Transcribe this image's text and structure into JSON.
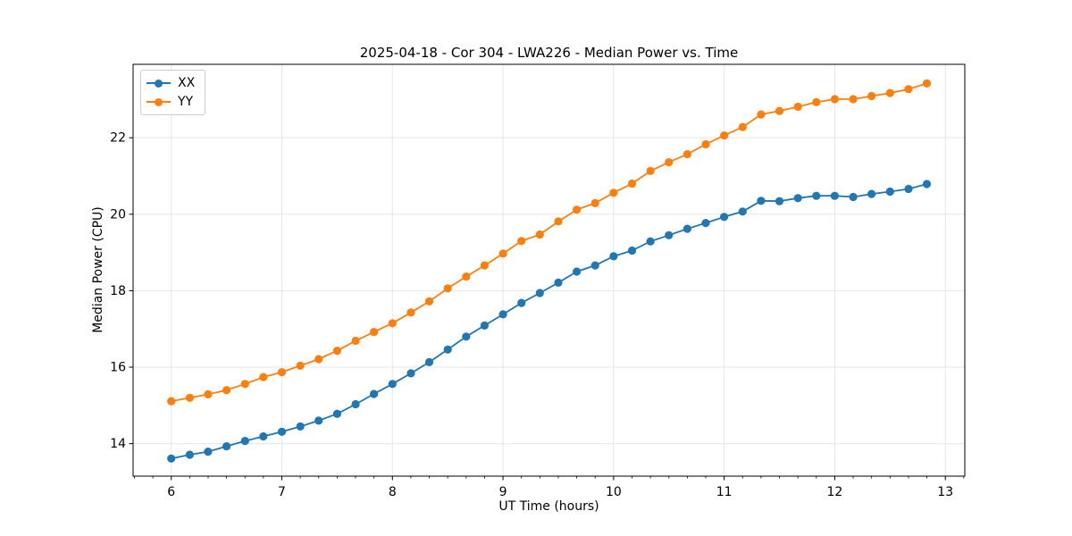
{
  "figure": {
    "title": "2025-04-18 - Cor 304 - LWA226 - Median Power vs. Time",
    "background_color": "#ffffff"
  },
  "chart_data": {
    "type": "line",
    "title": "2025-04-18 - Cor 304 - LWA226 - Median Power vs. Time",
    "xlabel": "UT Time (hours)",
    "ylabel": "Median Power (CPU)",
    "xlim": [
      5.655,
      13.176
    ],
    "ylim": [
      13.15,
      23.92
    ],
    "xticks": [
      6,
      7,
      8,
      9,
      10,
      11,
      12,
      13
    ],
    "yticks": [
      14,
      16,
      18,
      20,
      22
    ],
    "x_minor_tick_interval": 0.1667,
    "grid": true,
    "grid_color": "#e6e6e6",
    "spine_color": "#000000",
    "legend_position": "upper-left",
    "marker": "circle",
    "x": [
      6.0,
      6.167,
      6.333,
      6.5,
      6.667,
      6.833,
      7.0,
      7.167,
      7.333,
      7.5,
      7.667,
      7.833,
      8.0,
      8.167,
      8.333,
      8.5,
      8.667,
      8.833,
      9.0,
      9.167,
      9.333,
      9.5,
      9.667,
      9.833,
      10.0,
      10.167,
      10.333,
      10.5,
      10.667,
      10.833,
      11.0,
      11.167,
      11.333,
      11.5,
      11.667,
      11.833,
      12.0,
      12.167,
      12.333,
      12.5,
      12.667,
      12.833
    ],
    "series": [
      {
        "name": "XX",
        "color": "#1f77b4",
        "values": [
          13.61,
          13.71,
          13.79,
          13.93,
          14.07,
          14.19,
          14.31,
          14.45,
          14.6,
          14.78,
          15.03,
          15.3,
          15.56,
          15.84,
          16.13,
          16.46,
          16.8,
          17.09,
          17.38,
          17.68,
          17.94,
          18.21,
          18.5,
          18.66,
          18.9,
          19.05,
          19.29,
          19.45,
          19.62,
          19.77,
          19.93,
          20.07,
          20.35,
          20.34,
          20.42,
          20.48,
          20.48,
          20.45,
          20.53,
          20.59,
          20.66,
          20.79
        ]
      },
      {
        "name": "YY",
        "color": "#ff7f0e",
        "values": [
          15.11,
          15.2,
          15.29,
          15.4,
          15.56,
          15.74,
          15.87,
          16.04,
          16.21,
          16.43,
          16.69,
          16.92,
          17.15,
          17.43,
          17.72,
          18.06,
          18.37,
          18.66,
          18.97,
          19.3,
          19.47,
          19.81,
          20.12,
          20.29,
          20.56,
          20.8,
          21.13,
          21.36,
          21.57,
          21.83,
          22.06,
          22.28,
          22.61,
          22.7,
          22.81,
          22.93,
          23.01,
          23.01,
          23.09,
          23.17,
          23.27,
          23.42
        ]
      }
    ]
  },
  "legend": {
    "items": [
      {
        "label": "XX",
        "color": "#1f77b4"
      },
      {
        "label": "YY",
        "color": "#ff7f0e"
      }
    ]
  }
}
